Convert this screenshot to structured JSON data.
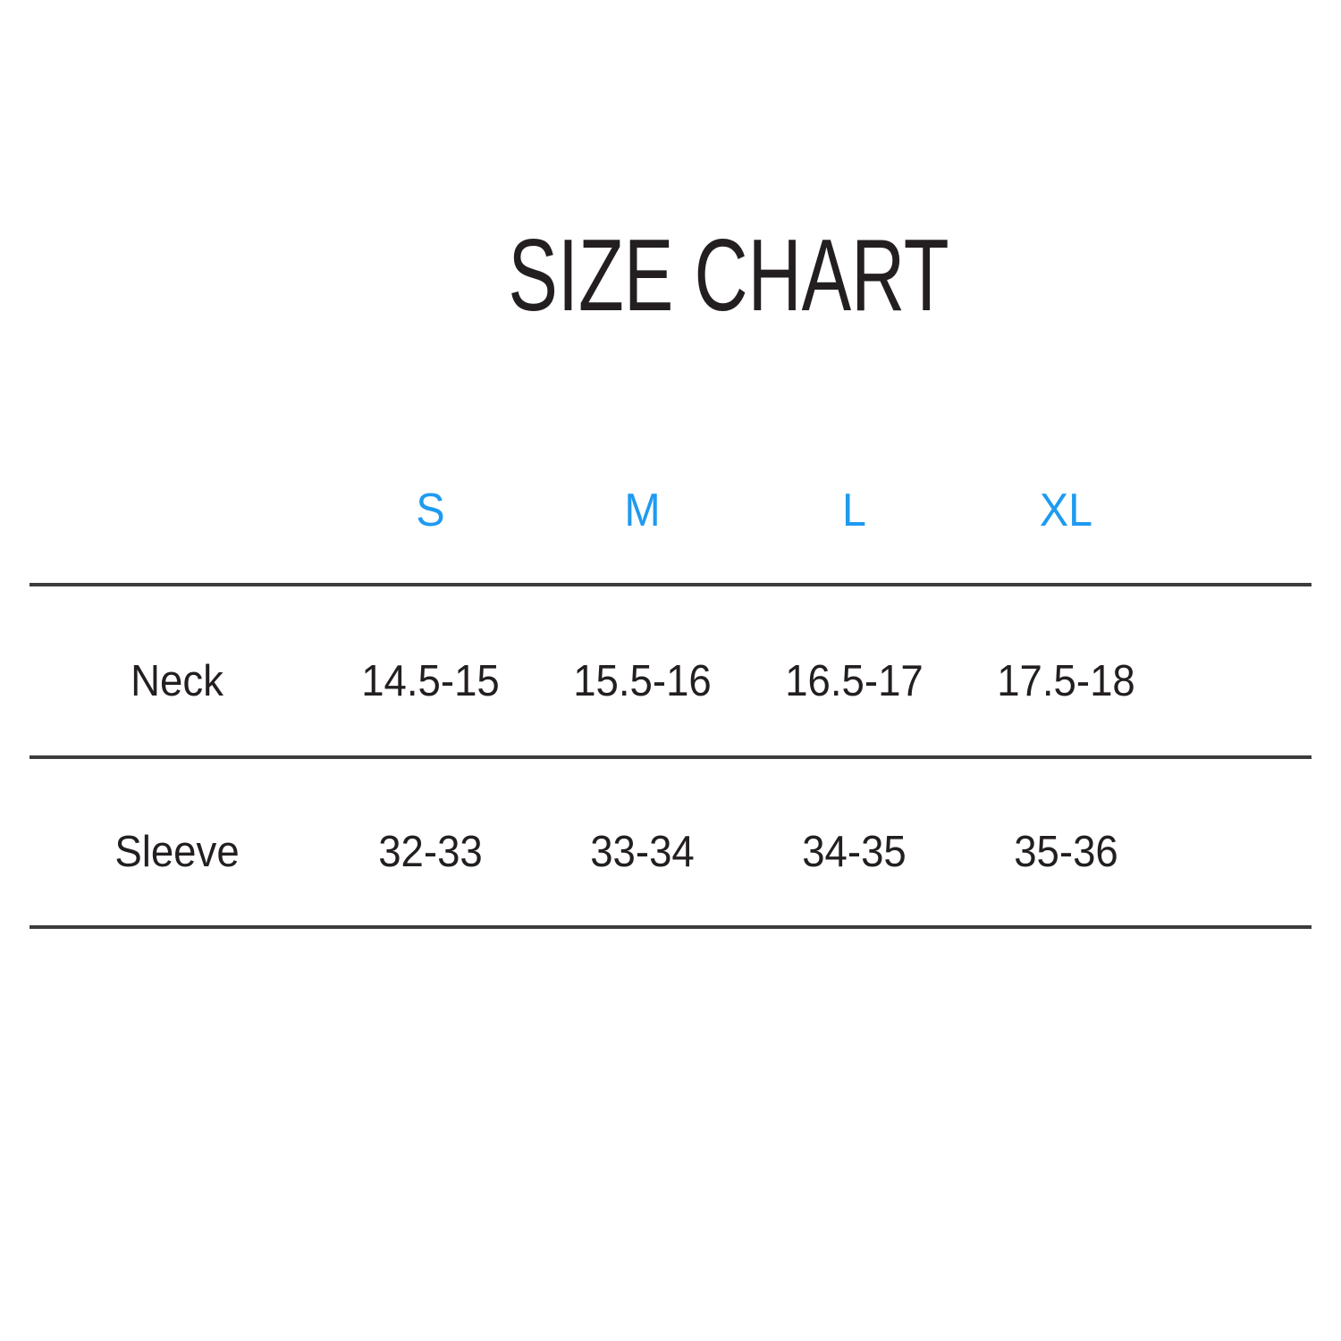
{
  "title": "SIZE CHART",
  "colors": {
    "accent_blue": "#1f9af0",
    "text": "#231f20",
    "rule_line": "#3d3b3c",
    "background": "#ffffff"
  },
  "chart_data": {
    "type": "table",
    "title": "SIZE CHART",
    "columns": [
      "S",
      "M",
      "L",
      "XL"
    ],
    "rows": [
      {
        "label": "Neck",
        "values": [
          "14.5-15",
          "15.5-16",
          "16.5-17",
          "17.5-18"
        ]
      },
      {
        "label": "Sleeve",
        "values": [
          "32-33",
          "33-34",
          "34-35",
          "35-36"
        ]
      }
    ],
    "layout": {
      "header_color": "#1f9af0",
      "rule_lines": 3,
      "grid": "horizontal-rules-only"
    }
  }
}
